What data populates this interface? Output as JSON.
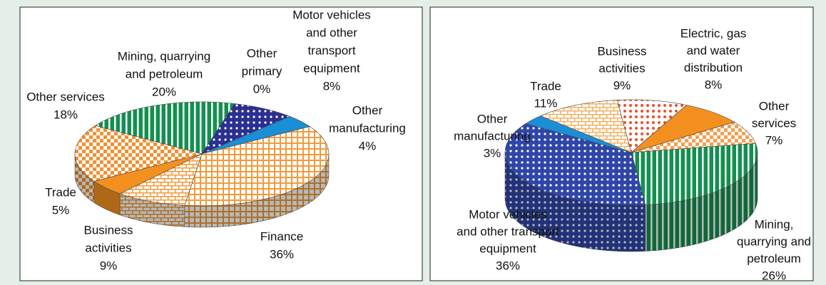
{
  "chart_data": [
    {
      "type": "pie",
      "categories": [
        [
          "Mining, quarrying",
          "and petroleum"
        ],
        [
          "Other",
          "primary"
        ],
        [
          "Motor vehicles",
          "and other",
          "transport",
          "equipment"
        ],
        [
          "Other",
          "manufacturing"
        ],
        [
          "Finance"
        ],
        [
          "Business",
          "activities"
        ],
        [
          "Trade"
        ],
        [
          "Other services"
        ]
      ],
      "values": [
        20,
        0,
        8,
        4,
        36,
        9,
        5,
        18
      ],
      "value_labels": [
        "20%",
        "0%",
        "8%",
        "4%",
        "36%",
        "9%",
        "5%",
        "18%"
      ],
      "colors": [
        "#13904f",
        "#2b2f8c",
        "#2a2f90",
        "#1a8fd6",
        "#f29a3a",
        "#f29a3a",
        "#f39020",
        "#f39030"
      ],
      "patterns": [
        "stripes",
        "solid",
        "dots",
        "solid",
        "grid",
        "brick",
        "solid",
        "checker"
      ]
    },
    {
      "type": "pie",
      "categories": [
        [
          "Mining,",
          "quarrying and",
          "petroleum"
        ],
        [
          "Motor vehicles",
          "and other transport",
          "equipment"
        ],
        [
          "Other",
          "manufacturing"
        ],
        [
          "Trade"
        ],
        [
          "Business",
          "activities"
        ],
        [
          "Electric, gas",
          "and water",
          "distribution"
        ],
        [
          "Other",
          "services"
        ]
      ],
      "values": [
        26,
        36,
        3,
        11,
        9,
        8,
        7
      ],
      "value_labels": [
        "26%",
        "36%",
        "3%",
        "11%",
        "9%",
        "8%",
        "7%"
      ],
      "colors": [
        "#13904f",
        "#2f46a8",
        "#1a8fd6",
        "#f5b060",
        "#e8502a",
        "#f39020",
        "#f5a050"
      ],
      "patterns": [
        "stripes",
        "dots",
        "solid",
        "brick",
        "spots",
        "solid",
        "checker"
      ]
    }
  ]
}
